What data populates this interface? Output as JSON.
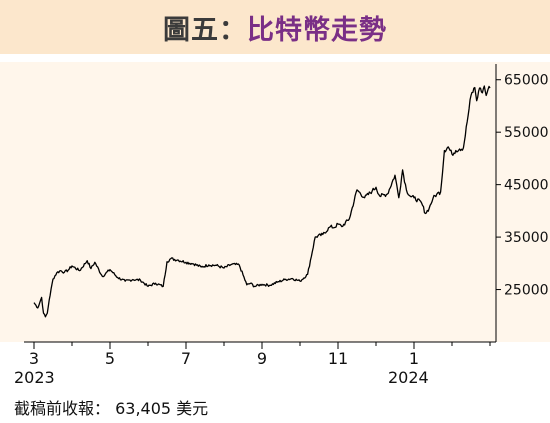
{
  "title": {
    "prefix": "圖五：",
    "main": "比特幣走勢"
  },
  "footnote": "截稿前收報： 63,405 美元",
  "colors": {
    "title_bg": "#fce7cc",
    "title_main": "#7a2f86",
    "plot_bg": "#fff6eb",
    "line": "#000000"
  },
  "chart_data": {
    "type": "line",
    "title": "比特幣走勢",
    "xlabel": "",
    "ylabel": "",
    "x_start": "2023-03",
    "x_end": "2024-03",
    "ylim": [
      15000,
      68000
    ],
    "y_ticks": [
      25000,
      35000,
      45000,
      55000,
      65000
    ],
    "y_tick_labels": [
      "25000",
      "35000",
      "45000",
      "55000",
      "65000"
    ],
    "x_ticks": [
      {
        "month": 0,
        "label": "3",
        "year": "2023"
      },
      {
        "month": 2,
        "label": "5",
        "year": ""
      },
      {
        "month": 4,
        "label": "7",
        "year": ""
      },
      {
        "month": 6,
        "label": "9",
        "year": ""
      },
      {
        "month": 8,
        "label": "11",
        "year": ""
      },
      {
        "month": 10,
        "label": "1",
        "year": "2024"
      }
    ],
    "grid": false,
    "series": [
      {
        "x": [
          0.0,
          0.1,
          0.2,
          0.25,
          0.3,
          0.35,
          0.4,
          0.5,
          0.6,
          0.7,
          0.8,
          0.9,
          1.0,
          1.2,
          1.4,
          1.5,
          1.6,
          1.8,
          2.0,
          2.2,
          2.4,
          2.6,
          2.8,
          3.0,
          3.2,
          3.4,
          3.5,
          3.6,
          3.8,
          4.0,
          4.2,
          4.4,
          4.6,
          4.8,
          5.0,
          5.2,
          5.4,
          5.6,
          5.7,
          5.8,
          6.0,
          6.2,
          6.4,
          6.6,
          6.8,
          7.0,
          7.2,
          7.4,
          7.6,
          7.8,
          7.9,
          8.0,
          8.1,
          8.3,
          8.5,
          8.7,
          8.9,
          9.0,
          9.1,
          9.3,
          9.5,
          9.6,
          9.7,
          9.8,
          9.9,
          10.0,
          10.2,
          10.3,
          10.4,
          10.5,
          10.6,
          10.7,
          10.8,
          10.9,
          11.0,
          11.1,
          11.2,
          11.3,
          11.4,
          11.5,
          11.6,
          11.65,
          11.7,
          11.75,
          11.8,
          11.85,
          11.9,
          11.95,
          12.0
        ],
        "y": [
          22500,
          21500,
          23500,
          20500,
          19800,
          20500,
          23000,
          27000,
          28200,
          28600,
          28300,
          28700,
          29500,
          28600,
          30500,
          29000,
          30200,
          27500,
          28800,
          27300,
          26600,
          26900,
          26800,
          25600,
          26200,
          25600,
          30300,
          30900,
          30600,
          30200,
          29900,
          29300,
          29700,
          29600,
          29100,
          29800,
          29700,
          25900,
          26200,
          25600,
          26000,
          25800,
          26400,
          26900,
          27100,
          26600,
          27900,
          35000,
          35500,
          37000,
          36800,
          37500,
          37000,
          38500,
          44000,
          42500,
          43800,
          44500,
          42800,
          43200,
          46800,
          42500,
          47800,
          44000,
          42800,
          42500,
          41500,
          39500,
          40500,
          42400,
          43200,
          43600,
          51500,
          52200,
          50800,
          51500,
          51800,
          52000,
          57000,
          62000,
          63500,
          61000,
          62800,
          63400,
          62500,
          63800,
          62000,
          63200,
          63405
        ]
      }
    ]
  }
}
